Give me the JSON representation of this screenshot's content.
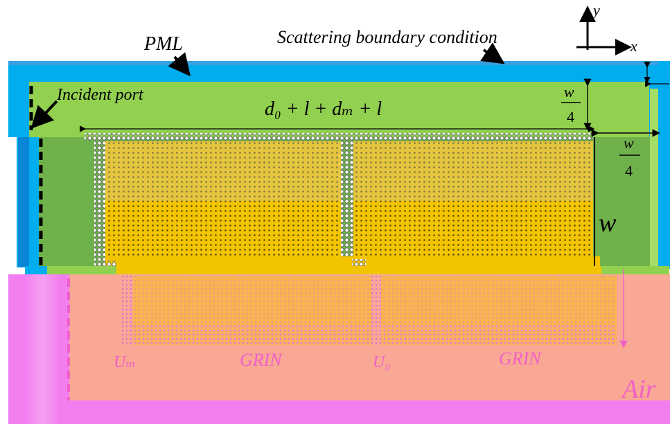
{
  "labels": {
    "pml": "PML",
    "scattering": "Scattering boundary condition",
    "incident_port": "Incident port",
    "length_expr": "d₀ + l + dₘ + l",
    "w_top_num": "w",
    "w_top_den": "4",
    "w_side_num": "w",
    "w_side_den": "4",
    "w_height": "w",
    "u_m": "Uₘ",
    "u_0": "U₀",
    "grin_1": "GRIN",
    "grin_2": "GRIN",
    "air": "Air",
    "axis_x": "x",
    "axis_y": "y"
  },
  "colors": {
    "pml_blue": "#00aeef",
    "port_blue": "#0090d8",
    "green_light": "#92d050",
    "green_dark": "#6fb14a",
    "yellow": "#f3c400",
    "orange_field": "#f7b840",
    "salmon": "#f8a894",
    "magenta": "#f27ef0",
    "label_pink": "#f060c8"
  }
}
